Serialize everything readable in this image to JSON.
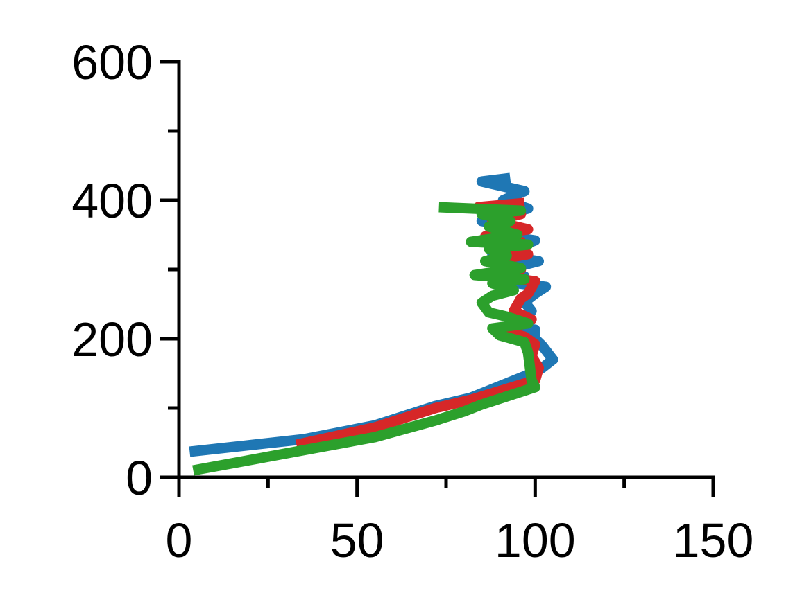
{
  "chart_data": {
    "type": "line",
    "title": "",
    "xlabel": "",
    "ylabel": "",
    "xlim": [
      0,
      150
    ],
    "ylim": [
      0,
      600
    ],
    "x_ticks": [
      0,
      50,
      100,
      150
    ],
    "x_tick_labels": [
      "0",
      "50",
      "100",
      "150"
    ],
    "x_minor_ticks": [
      25,
      75,
      125
    ],
    "y_ticks": [
      0,
      200,
      400,
      600
    ],
    "y_tick_labels": [
      "0",
      "200",
      "400",
      "600"
    ],
    "y_minor_ticks": [
      100,
      300,
      500
    ],
    "grid": false,
    "legend": "none",
    "series": [
      {
        "color": "#1f77b4",
        "points": [
          [
            3,
            37
          ],
          [
            35,
            55
          ],
          [
            55,
            75
          ],
          [
            72,
            103
          ],
          [
            82,
            115
          ],
          [
            98,
            148
          ],
          [
            102,
            158
          ],
          [
            105,
            170
          ],
          [
            102,
            190
          ],
          [
            100,
            200
          ],
          [
            100,
            213
          ],
          [
            92,
            218
          ],
          [
            96,
            228
          ],
          [
            99,
            240
          ],
          [
            97,
            253
          ],
          [
            100,
            265
          ],
          [
            103,
            275
          ],
          [
            92,
            282
          ],
          [
            97,
            290
          ],
          [
            90,
            298
          ],
          [
            101,
            312
          ],
          [
            88,
            322
          ],
          [
            94,
            330
          ],
          [
            100,
            342
          ],
          [
            89,
            350
          ],
          [
            96,
            360
          ],
          [
            85,
            370
          ],
          [
            98,
            388
          ],
          [
            91,
            400
          ],
          [
            97,
            413
          ],
          [
            85,
            427
          ],
          [
            93,
            432
          ]
        ]
      },
      {
        "color": "#d62728",
        "points": [
          [
            33,
            47
          ],
          [
            55,
            72
          ],
          [
            72,
            100
          ],
          [
            82,
            112
          ],
          [
            100,
            140
          ],
          [
            101,
            158
          ],
          [
            99,
            175
          ],
          [
            100,
            192
          ],
          [
            97,
            203
          ],
          [
            92,
            210
          ],
          [
            99,
            228
          ],
          [
            94,
            240
          ],
          [
            96,
            258
          ],
          [
            98,
            265
          ],
          [
            100,
            283
          ],
          [
            88,
            290
          ],
          [
            96,
            300
          ],
          [
            87,
            312
          ],
          [
            98,
            322
          ],
          [
            90,
            332
          ],
          [
            96,
            340
          ],
          [
            86,
            348
          ],
          [
            98,
            358
          ],
          [
            88,
            370
          ],
          [
            96,
            380
          ],
          [
            84,
            390
          ],
          [
            97,
            396
          ]
        ]
      },
      {
        "color": "#2ca02c",
        "points": [
          [
            4,
            10
          ],
          [
            20,
            25
          ],
          [
            55,
            58
          ],
          [
            72,
            82
          ],
          [
            80,
            95
          ],
          [
            85,
            105
          ],
          [
            100,
            130
          ],
          [
            99,
            140
          ],
          [
            98,
            180
          ],
          [
            97,
            195
          ],
          [
            90,
            205
          ],
          [
            88,
            215
          ],
          [
            98,
            222
          ],
          [
            92,
            232
          ],
          [
            87,
            238
          ],
          [
            85,
            252
          ],
          [
            88,
            262
          ],
          [
            94,
            270
          ],
          [
            88,
            280
          ],
          [
            97,
            286
          ],
          [
            83,
            292
          ],
          [
            96,
            302
          ],
          [
            86,
            312
          ],
          [
            92,
            320
          ],
          [
            87,
            330
          ],
          [
            98,
            336
          ],
          [
            82,
            340
          ],
          [
            95,
            350
          ],
          [
            87,
            362
          ],
          [
            93,
            370
          ],
          [
            85,
            380
          ],
          [
            96,
            385
          ],
          [
            73,
            390
          ]
        ]
      }
    ]
  }
}
